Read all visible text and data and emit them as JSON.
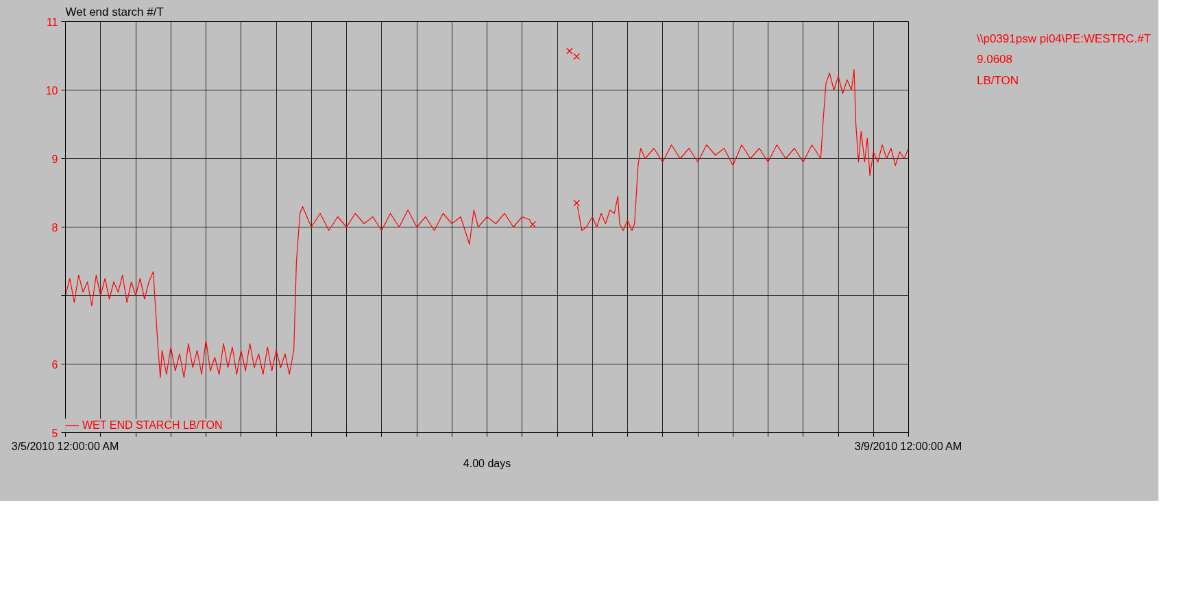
{
  "chart_data": {
    "type": "line",
    "title": "Wet end starch #/T",
    "xlabel": "4.00 days",
    "annotations": [
      "\\\\p0391psw pi04\\PE:WESTRC.#T",
      "9.0608",
      "LB/TON"
    ],
    "xlim": [
      "2010-03-05T00:00",
      "2010-03-09T00:00"
    ],
    "ylim": [
      5,
      11
    ],
    "xticks": [
      {
        "value": "2010-03-05T00:00",
        "label": "3/5/2010 12:00:00 AM"
      },
      {
        "value": "2010-03-05T04:00",
        "label": null
      },
      {
        "value": "2010-03-05T08:00",
        "label": null
      },
      {
        "value": "2010-03-05T12:00",
        "label": null
      },
      {
        "value": "2010-03-05T16:00",
        "label": null
      },
      {
        "value": "2010-03-05T20:00",
        "label": null
      },
      {
        "value": "2010-03-06T00:00",
        "label": null
      },
      {
        "value": "2010-03-06T04:00",
        "label": null
      },
      {
        "value": "2010-03-06T08:00",
        "label": null
      },
      {
        "value": "2010-03-06T12:00",
        "label": null
      },
      {
        "value": "2010-03-06T16:00",
        "label": null
      },
      {
        "value": "2010-03-06T20:00",
        "label": null
      },
      {
        "value": "2010-03-07T00:00",
        "label": null
      },
      {
        "value": "2010-03-07T04:00",
        "label": null
      },
      {
        "value": "2010-03-07T08:00",
        "label": null
      },
      {
        "value": "2010-03-07T12:00",
        "label": null
      },
      {
        "value": "2010-03-07T16:00",
        "label": null
      },
      {
        "value": "2010-03-07T20:00",
        "label": null
      },
      {
        "value": "2010-03-08T00:00",
        "label": null
      },
      {
        "value": "2010-03-08T04:00",
        "label": null
      },
      {
        "value": "2010-03-08T08:00",
        "label": null
      },
      {
        "value": "2010-03-08T12:00",
        "label": null
      },
      {
        "value": "2010-03-08T16:00",
        "label": null
      },
      {
        "value": "2010-03-08T20:00",
        "label": null
      },
      {
        "value": "2010-03-09T00:00",
        "label": "3/9/2010 12:00:00 AM"
      }
    ],
    "yticks": [
      5,
      6,
      {
        "value": 7,
        "label": null
      },
      8,
      9,
      10,
      11
    ],
    "grid": true,
    "legend": "bottom left",
    "series": [
      {
        "name": "WET END STARCH LB/TON",
        "color": "#ff0000",
        "x": [
          "2010-03-05T00:00",
          "2010-03-05T00:30",
          "2010-03-05T01:00",
          "2010-03-05T01:30",
          "2010-03-05T02:00",
          "2010-03-05T02:30",
          "2010-03-05T03:00",
          "2010-03-05T03:30",
          "2010-03-05T04:00",
          "2010-03-05T04:30",
          "2010-03-05T05:00",
          "2010-03-05T05:30",
          "2010-03-05T06:00",
          "2010-03-05T06:30",
          "2010-03-05T07:00",
          "2010-03-05T07:30",
          "2010-03-05T08:00",
          "2010-03-05T08:30",
          "2010-03-05T09:00",
          "2010-03-05T09:30",
          "2010-03-05T10:00",
          "2010-03-05T10:30",
          "2010-03-05T10:48",
          "2010-03-05T11:00",
          "2010-03-05T11:30",
          "2010-03-05T12:00",
          "2010-03-05T12:30",
          "2010-03-05T13:00",
          "2010-03-05T13:30",
          "2010-03-05T14:00",
          "2010-03-05T14:30",
          "2010-03-05T15:00",
          "2010-03-05T15:30",
          "2010-03-05T16:00",
          "2010-03-05T16:30",
          "2010-03-05T17:00",
          "2010-03-05T17:30",
          "2010-03-05T18:00",
          "2010-03-05T18:30",
          "2010-03-05T19:00",
          "2010-03-05T19:30",
          "2010-03-05T20:00",
          "2010-03-05T20:30",
          "2010-03-05T21:00",
          "2010-03-05T21:30",
          "2010-03-05T22:00",
          "2010-03-05T22:30",
          "2010-03-05T23:00",
          "2010-03-05T23:30",
          "2010-03-06T00:00",
          "2010-03-06T00:30",
          "2010-03-06T01:00",
          "2010-03-06T01:30",
          "2010-03-06T02:00",
          "2010-03-06T02:18",
          "2010-03-06T02:42",
          "2010-03-06T03:00",
          "2010-03-06T04:00",
          "2010-03-06T05:00",
          "2010-03-06T06:00",
          "2010-03-06T07:00",
          "2010-03-06T08:00",
          "2010-03-06T09:00",
          "2010-03-06T10:00",
          "2010-03-06T11:00",
          "2010-03-06T12:00",
          "2010-03-06T13:00",
          "2010-03-06T14:00",
          "2010-03-06T15:00",
          "2010-03-06T16:00",
          "2010-03-06T17:00",
          "2010-03-06T18:00",
          "2010-03-06T19:00",
          "2010-03-06T20:00",
          "2010-03-06T21:00",
          "2010-03-06T22:00",
          "2010-03-06T22:30",
          "2010-03-06T23:00",
          "2010-03-07T00:00",
          "2010-03-07T01:00",
          "2010-03-07T02:00",
          "2010-03-07T03:00",
          "2010-03-07T04:00",
          "2010-03-07T05:00",
          "2010-03-07T05:30",
          "2010-03-07T10:18",
          "2010-03-07T10:48",
          "2010-03-07T11:18",
          "2010-03-07T12:00",
          "2010-03-07T12:30",
          "2010-03-07T13:00",
          "2010-03-07T13:30",
          "2010-03-07T14:00",
          "2010-03-07T14:30",
          "2010-03-07T14:54",
          "2010-03-07T15:06",
          "2010-03-07T15:30",
          "2010-03-07T16:00",
          "2010-03-07T16:30",
          "2010-03-07T16:48",
          "2010-03-07T17:12",
          "2010-03-07T17:30",
          "2010-03-07T18:00",
          "2010-03-07T19:00",
          "2010-03-07T20:00",
          "2010-03-07T21:00",
          "2010-03-07T22:00",
          "2010-03-07T23:00",
          "2010-03-08T00:00",
          "2010-03-08T01:00",
          "2010-03-08T02:00",
          "2010-03-08T03:00",
          "2010-03-08T04:00",
          "2010-03-08T05:00",
          "2010-03-08T06:00",
          "2010-03-08T07:00",
          "2010-03-08T08:00",
          "2010-03-08T09:00",
          "2010-03-08T10:00",
          "2010-03-08T11:00",
          "2010-03-08T12:00",
          "2010-03-08T13:00",
          "2010-03-08T14:00",
          "2010-03-08T14:18",
          "2010-03-08T14:36",
          "2010-03-08T15:00",
          "2010-03-08T15:30",
          "2010-03-08T16:00",
          "2010-03-08T16:30",
          "2010-03-08T17:00",
          "2010-03-08T17:30",
          "2010-03-08T17:48",
          "2010-03-08T18:00",
          "2010-03-08T18:18",
          "2010-03-08T18:36",
          "2010-03-08T19:00",
          "2010-03-08T19:18",
          "2010-03-08T19:36",
          "2010-03-08T20:00",
          "2010-03-08T20:30",
          "2010-03-08T21:00",
          "2010-03-08T21:30",
          "2010-03-08T22:00",
          "2010-03-08T22:30",
          "2010-03-08T23:00",
          "2010-03-08T23:30",
          "2010-03-09T00:00"
        ],
        "values": [
          7.0,
          7.25,
          6.9,
          7.3,
          7.05,
          7.2,
          6.85,
          7.3,
          7.0,
          7.25,
          6.95,
          7.2,
          7.05,
          7.3,
          6.9,
          7.2,
          7.0,
          7.25,
          6.95,
          7.2,
          7.35,
          6.3,
          5.8,
          6.2,
          5.85,
          6.25,
          5.9,
          6.15,
          5.8,
          6.3,
          5.95,
          6.2,
          5.85,
          6.35,
          5.9,
          6.1,
          5.85,
          6.3,
          5.95,
          6.25,
          5.85,
          6.2,
          5.9,
          6.3,
          5.95,
          6.15,
          5.85,
          6.25,
          5.9,
          6.2,
          5.95,
          6.15,
          5.85,
          6.2,
          7.5,
          8.2,
          8.3,
          8.0,
          8.2,
          7.95,
          8.15,
          8.0,
          8.2,
          8.05,
          8.15,
          7.95,
          8.2,
          8.0,
          8.25,
          8.0,
          8.15,
          7.95,
          8.2,
          8.05,
          8.15,
          7.75,
          8.25,
          8.0,
          8.15,
          8.05,
          8.2,
          8.0,
          8.15,
          8.1,
          null,
          8.3,
          7.95,
          8.0,
          8.15,
          8.0,
          8.2,
          8.05,
          8.25,
          8.2,
          8.45,
          8.05,
          7.95,
          8.1,
          7.95,
          8.05,
          8.9,
          9.15,
          9.0,
          9.15,
          8.95,
          9.2,
          9.0,
          9.15,
          8.95,
          9.2,
          9.05,
          9.15,
          8.9,
          9.2,
          9.0,
          9.15,
          8.95,
          9.2,
          9.0,
          9.15,
          8.95,
          9.2,
          9.0,
          9.6,
          10.1,
          10.25,
          10.0,
          10.2,
          9.95,
          10.15,
          10.0,
          10.3,
          9.5,
          8.95,
          9.4,
          8.95,
          9.3,
          8.75,
          9.1,
          8.95,
          9.2,
          9.0,
          9.15,
          8.9,
          9.1,
          9.0,
          9.15
        ]
      },
      {
        "color": "#ff0000",
        "type": "scatter",
        "marker": "cross",
        "x": [
          "2010-03-07T05:12",
          "2010-03-07T09:24",
          "2010-03-07T10:12",
          "2010-03-07T10:12"
        ],
        "values": [
          8.04,
          10.57,
          10.49,
          8.35
        ]
      }
    ]
  }
}
